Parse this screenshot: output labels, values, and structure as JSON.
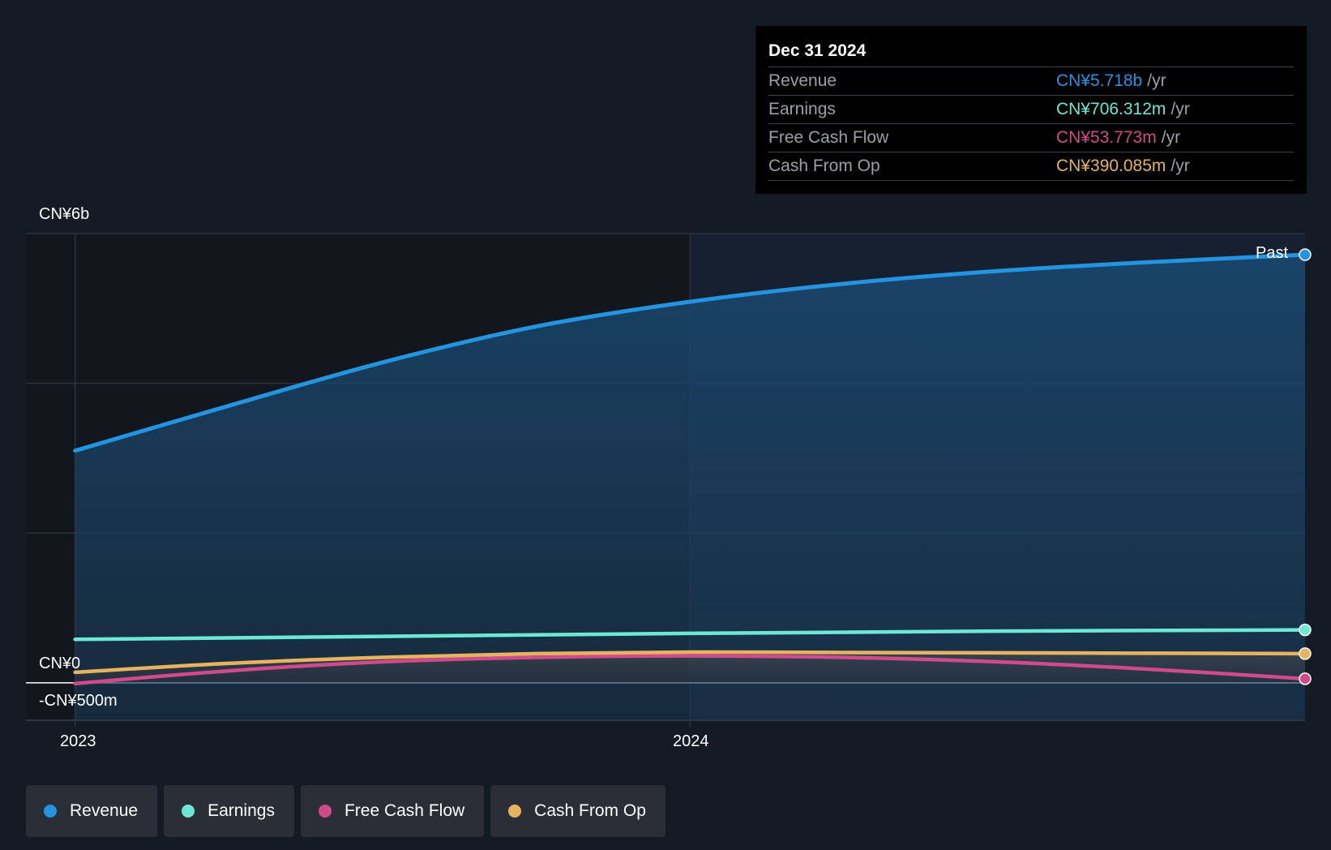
{
  "tooltip": {
    "date": "Dec 31 2024",
    "rows": [
      {
        "label": "Revenue",
        "value": "CN¥5.718b",
        "unit": "/yr",
        "color": "#2394df"
      },
      {
        "label": "Earnings",
        "value": "CN¥706.312m",
        "unit": "/yr",
        "color": "#6ce8d3"
      },
      {
        "label": "Free Cash Flow",
        "value": "CN¥53.773m",
        "unit": "/yr",
        "color": "#d14a8c"
      },
      {
        "label": "Cash From Op",
        "value": "CN¥390.085m",
        "unit": "/yr",
        "color": "#e8b35f"
      }
    ]
  },
  "past_label": "Past",
  "legend": [
    {
      "label": "Revenue",
      "color": "#2394df"
    },
    {
      "label": "Earnings",
      "color": "#6ce8d3"
    },
    {
      "label": "Free Cash Flow",
      "color": "#d14a8c"
    },
    {
      "label": "Cash From Op",
      "color": "#e8b35f"
    }
  ],
  "chart_data": {
    "type": "line",
    "title": "",
    "xlabel": "",
    "ylabel": "",
    "ylim": [
      -500,
      6000
    ],
    "y_tick_labels": [
      {
        "value": 6000,
        "label": "CN¥6b"
      },
      {
        "value": 0,
        "label": "CN¥0"
      },
      {
        "value": -500,
        "label": "-CN¥500m"
      }
    ],
    "x_tick_labels": [
      {
        "value": 2023.0,
        "label": "2023"
      },
      {
        "value": 2024.0,
        "label": "2024"
      }
    ],
    "xlim": [
      2022.92,
      2025.0
    ],
    "grid": true,
    "legend_position": "bottom",
    "series": [
      {
        "name": "Revenue",
        "color": "#2394df",
        "x": [
          2023.0,
          2023.25,
          2023.5,
          2023.75,
          2024.0,
          2024.25,
          2024.5,
          2024.75,
          2025.0
        ],
        "values": [
          3100,
          3700,
          4280,
          4760,
          5090,
          5330,
          5500,
          5620,
          5718
        ]
      },
      {
        "name": "Earnings",
        "color": "#6ce8d3",
        "x": [
          2023.0,
          2023.5,
          2024.0,
          2024.5,
          2025.0
        ],
        "values": [
          580,
          620,
          660,
          690,
          706.312
        ]
      },
      {
        "name": "Free Cash Flow",
        "color": "#d14a8c",
        "x": [
          2023.0,
          2023.25,
          2023.5,
          2023.75,
          2024.0,
          2024.25,
          2024.5,
          2024.75,
          2025.0
        ],
        "values": [
          -10,
          160,
          280,
          340,
          360,
          340,
          280,
          180,
          53.773
        ]
      },
      {
        "name": "Cash From Op",
        "color": "#e8b35f",
        "x": [
          2023.0,
          2023.25,
          2023.5,
          2023.75,
          2024.0,
          2024.25,
          2024.5,
          2024.75,
          2025.0
        ],
        "values": [
          140,
          260,
          340,
          390,
          410,
          405,
          400,
          395,
          390.085
        ]
      }
    ]
  }
}
